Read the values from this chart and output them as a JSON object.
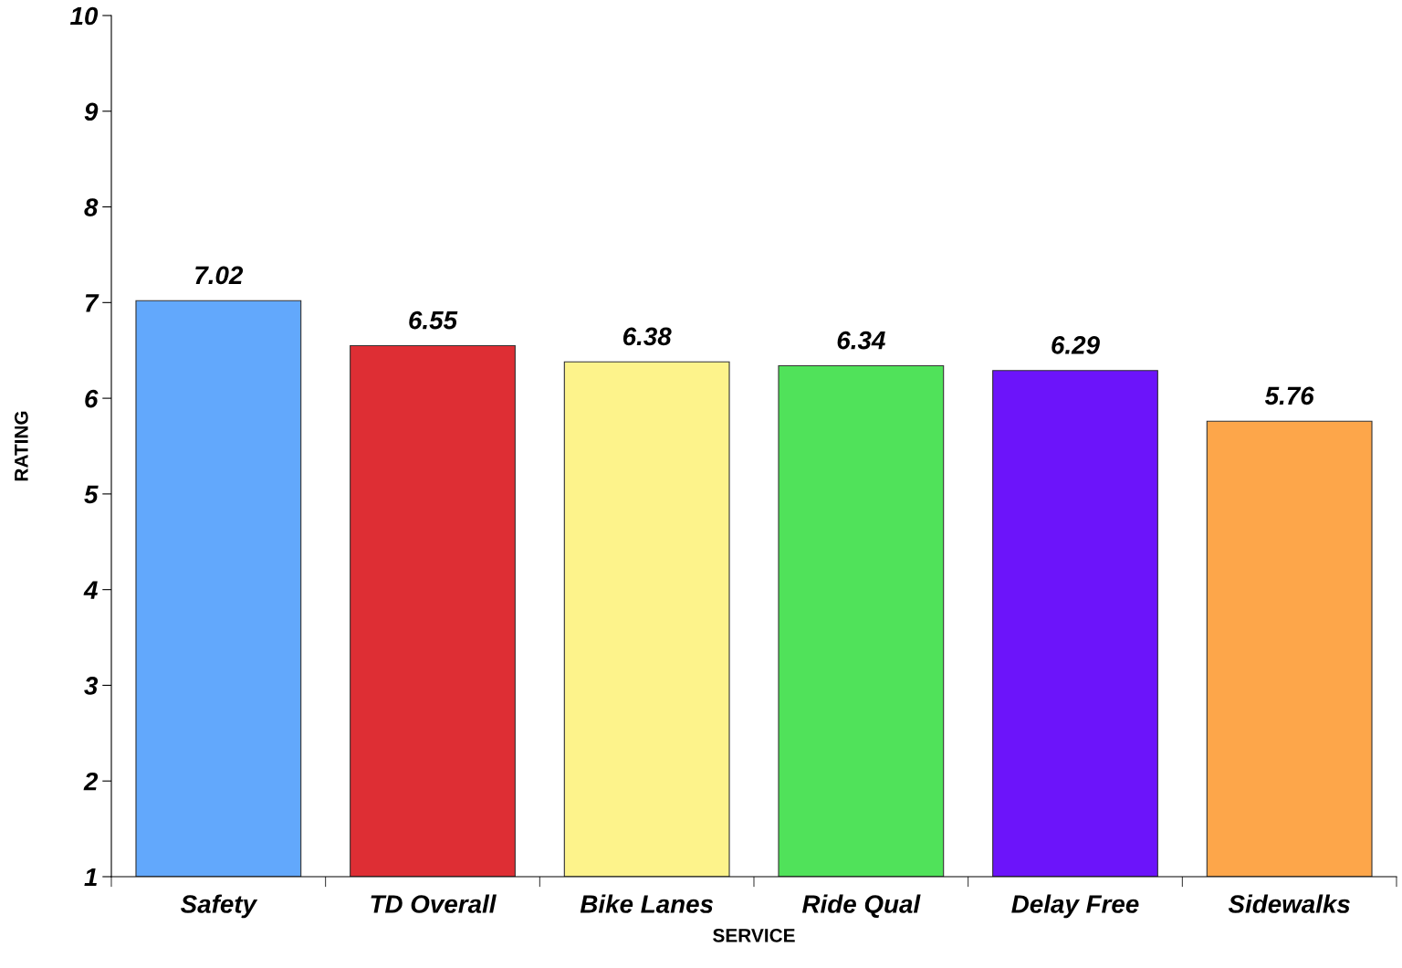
{
  "chart_data": {
    "type": "bar",
    "xlabel": "SERVICE",
    "ylabel": "RATING",
    "categories": [
      "Safety",
      "TD Overall",
      "Bike Lanes",
      "Ride Qual",
      "Delay Free",
      "Sidewalks"
    ],
    "values": [
      7.02,
      6.55,
      6.38,
      6.34,
      6.29,
      5.76
    ],
    "colors": [
      "#62a8fc",
      "#de2e34",
      "#fdf38b",
      "#50e25a",
      "#6c14fa",
      "#fda64a"
    ],
    "ylim": [
      1,
      10
    ],
    "yticks": [
      1,
      2,
      3,
      4,
      5,
      6,
      7,
      8,
      9,
      10
    ],
    "grid": false,
    "data_labels": true
  }
}
